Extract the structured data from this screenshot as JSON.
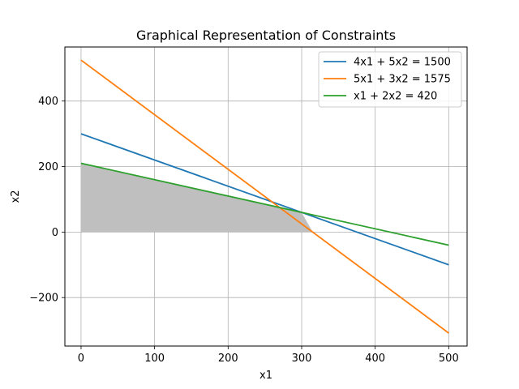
{
  "chart_data": {
    "type": "line",
    "title": "Graphical Representation of Constraints",
    "xlabel": "x1",
    "ylabel": "x2",
    "xlim": [
      -22,
      525
    ],
    "ylim": [
      -348,
      565
    ],
    "xticks": [
      0,
      100,
      200,
      300,
      400,
      500
    ],
    "yticks": [
      -200,
      0,
      200,
      400
    ],
    "xtick_labels": [
      "0",
      "100",
      "200",
      "300",
      "400",
      "500"
    ],
    "ytick_labels": [
      "−200",
      "0",
      "200",
      "400"
    ],
    "grid": true,
    "legend_position": "top-right",
    "series": [
      {
        "name": "4x1 + 5x2 = 1500",
        "color": "#1f77b4",
        "x": [
          0,
          500
        ],
        "y": [
          300,
          -100
        ]
      },
      {
        "name": "5x1 + 3x2 = 1575",
        "color": "#ff7f0e",
        "x": [
          0,
          500
        ],
        "y": [
          525,
          -308.33
        ]
      },
      {
        "name": "x1 + 2x2 = 420",
        "color": "#2ca02c",
        "x": [
          0,
          500
        ],
        "y": [
          210,
          -40
        ]
      }
    ],
    "feasible_region": {
      "color": "#bfbfbf",
      "x": [
        0,
        0,
        300,
        315
      ],
      "y": [
        0,
        210,
        60,
        0
      ]
    }
  }
}
